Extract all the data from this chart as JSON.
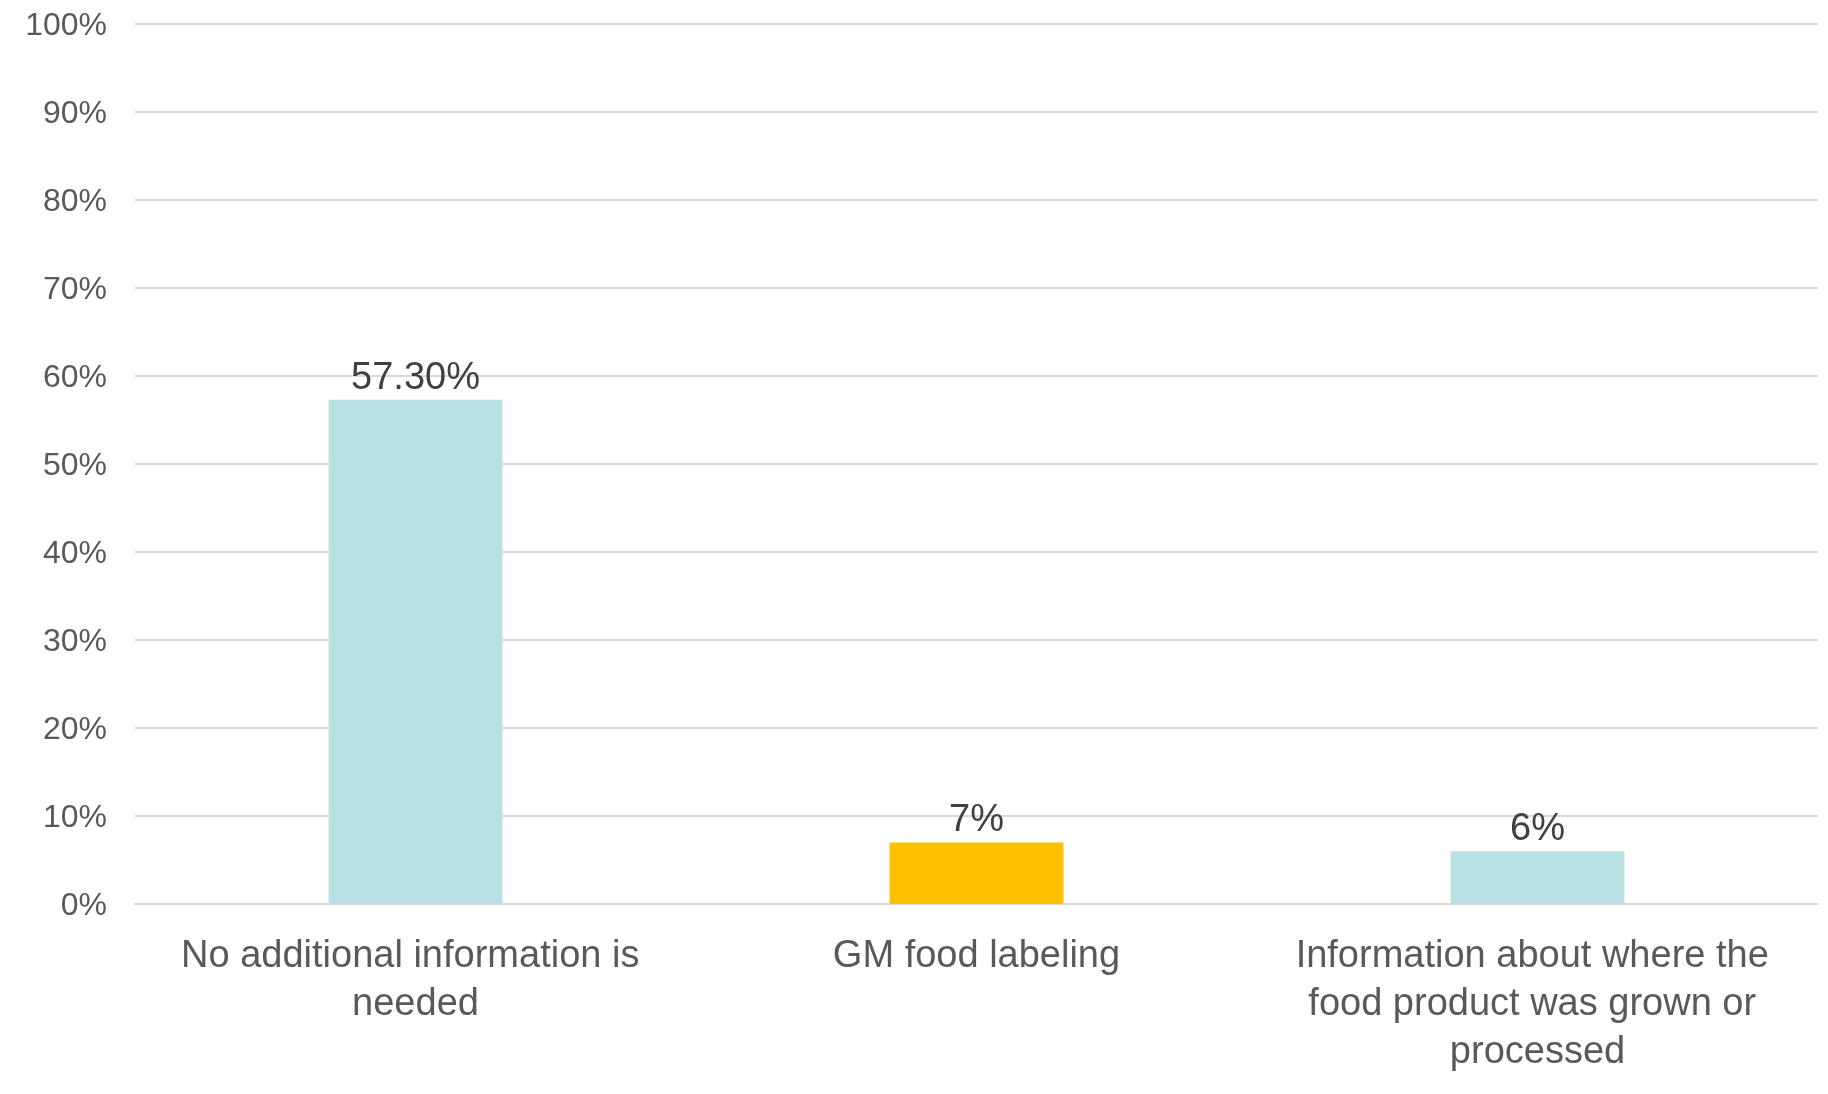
{
  "chart_data": {
    "type": "bar",
    "categories": [
      "No additional information is needed",
      "GM food labeling",
      "Information about where the food product was grown or processed"
    ],
    "values": [
      57.3,
      7,
      6
    ],
    "colors": [
      "#b9e0e3",
      "#ffc000",
      "#b9e0e3"
    ],
    "value_labels": [
      "57.30%",
      "7%",
      "6%"
    ],
    "ylim": [
      0,
      100
    ],
    "yticks": [
      {
        "value": 0,
        "label": "0%"
      },
      {
        "value": 10,
        "label": "10%"
      },
      {
        "value": 20,
        "label": "20%"
      },
      {
        "value": 30,
        "label": "30%"
      },
      {
        "value": 40,
        "label": "40%"
      },
      {
        "value": 50,
        "label": "50%"
      },
      {
        "value": 60,
        "label": "60%"
      },
      {
        "value": 70,
        "label": "70%"
      },
      {
        "value": 80,
        "label": "80%"
      },
      {
        "value": 90,
        "label": "90%"
      },
      {
        "value": 100,
        "label": "100%"
      }
    ],
    "grid": "y"
  }
}
